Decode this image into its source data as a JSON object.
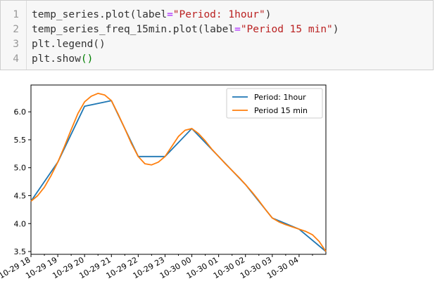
{
  "code_cell": {
    "line_numbers": [
      "1",
      "2",
      "3",
      "4"
    ],
    "lines": [
      [
        {
          "t": "temp_series.plot(label=",
          "c": "plain"
        },
        {
          "t": "\"Period: 1hour\"",
          "c": "str"
        },
        {
          "t": ")",
          "c": "plain"
        }
      ],
      [
        {
          "t": "temp_series_freq_15min.plot(label=",
          "c": "plain"
        },
        {
          "t": "\"Period 15 min\"",
          "c": "str"
        },
        {
          "t": ")",
          "c": "plain"
        }
      ],
      [
        {
          "t": "plt.legend()",
          "c": "plain"
        }
      ],
      [
        {
          "t": "plt.show",
          "c": "plain"
        },
        {
          "t": "()",
          "c": "green"
        }
      ]
    ]
  },
  "chart_data": {
    "type": "line",
    "title": "",
    "xlabel": "",
    "ylabel": "",
    "x_tick_labels": [
      "10-29 18",
      "10-29 19",
      "10-29 20",
      "10-29 21",
      "10-29 22",
      "10-29 23",
      "10-30 00",
      "10-30 01",
      "10-30 02",
      "10-30 03",
      "10-30 04"
    ],
    "y_tick_labels": [
      "3.5",
      "4.0",
      "4.5",
      "5.0",
      "5.5",
      "6.0"
    ],
    "y_ticks": [
      3.5,
      4.0,
      4.5,
      5.0,
      5.5,
      6.0
    ],
    "xlim": [
      0,
      11
    ],
    "ylim": [
      3.45,
      6.48
    ],
    "grid": false,
    "legend_position": "top-right",
    "series": [
      {
        "name": "Period: 1hour",
        "color": "#1f77b4",
        "x": [
          0,
          1,
          2,
          3,
          4,
          5,
          6,
          7,
          8,
          9,
          10,
          11
        ],
        "y": [
          4.4,
          5.1,
          6.1,
          6.2,
          5.2,
          5.2,
          5.7,
          5.2,
          4.7,
          4.1,
          3.9,
          3.5
        ]
      },
      {
        "name": "Period 15 min",
        "color": "#ff7f0e",
        "x": [
          0,
          0.25,
          0.5,
          0.75,
          1,
          1.25,
          1.5,
          1.75,
          2,
          2.25,
          2.5,
          2.75,
          3,
          3.25,
          3.5,
          3.75,
          4,
          4.25,
          4.5,
          4.75,
          5,
          5.25,
          5.5,
          5.75,
          6,
          6.25,
          6.5,
          6.75,
          7,
          7.25,
          7.5,
          7.75,
          8,
          8.25,
          8.5,
          8.75,
          9,
          9.25,
          9.5,
          9.75,
          10,
          10.25,
          10.5,
          10.75,
          11
        ],
        "y": [
          4.4,
          4.5,
          4.65,
          4.86,
          5.1,
          5.38,
          5.68,
          5.97,
          6.18,
          6.28,
          6.33,
          6.3,
          6.2,
          5.96,
          5.7,
          5.43,
          5.2,
          5.07,
          5.05,
          5.1,
          5.2,
          5.38,
          5.56,
          5.67,
          5.7,
          5.61,
          5.48,
          5.33,
          5.2,
          5.07,
          4.95,
          4.83,
          4.7,
          4.56,
          4.41,
          4.25,
          4.1,
          4.03,
          3.98,
          3.94,
          3.9,
          3.86,
          3.8,
          3.68,
          3.5
        ]
      }
    ]
  }
}
